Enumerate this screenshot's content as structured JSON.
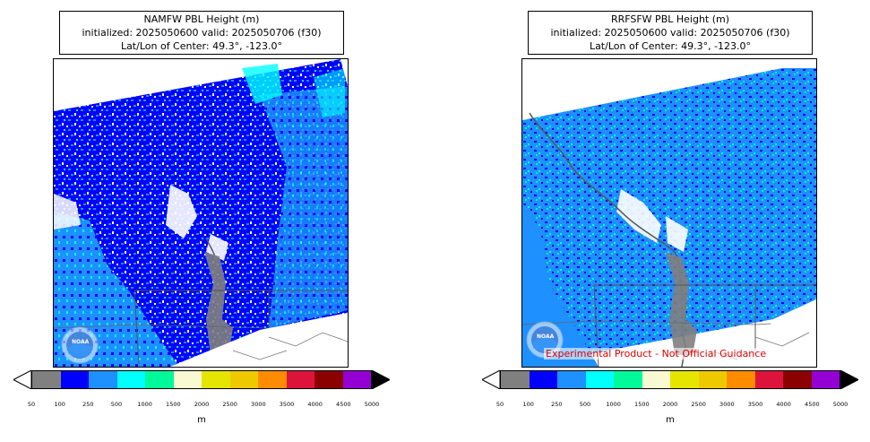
{
  "panels": [
    {
      "id": "left",
      "title_line1": "NAMFW PBL Height (m)",
      "title_line2": "initialized: 2025050600 valid: 2025050706 (f30)",
      "title_line3": "Lat/Lon of Center: 49.3°, -123.0°",
      "logo_text": "NOAA",
      "disclaimer": ""
    },
    {
      "id": "right",
      "title_line1": "RRFSFW PBL Height (m)",
      "title_line2": "initialized: 2025050600 valid: 2025050706 (f30)",
      "title_line3": "Lat/Lon of Center: 49.3°, -123.0°",
      "logo_text": "NOAA",
      "disclaimer": "Experimental Product - Not Official Guidance"
    }
  ],
  "colorbar": {
    "unit": "m",
    "ticks": [
      "50",
      "100",
      "250",
      "500",
      "1000",
      "1500",
      "2000",
      "2500",
      "3000",
      "3500",
      "4000",
      "4500",
      "5000"
    ],
    "colors": [
      "#808080",
      "#0000ff",
      "#1e90ff",
      "#00ffff",
      "#00fa9a",
      "#fafad2",
      "#e5e500",
      "#eec900",
      "#ff8c00",
      "#dc143c",
      "#8b0000",
      "#9400d3"
    ],
    "under_color": "#ffffff",
    "over_color": "#000000"
  }
}
